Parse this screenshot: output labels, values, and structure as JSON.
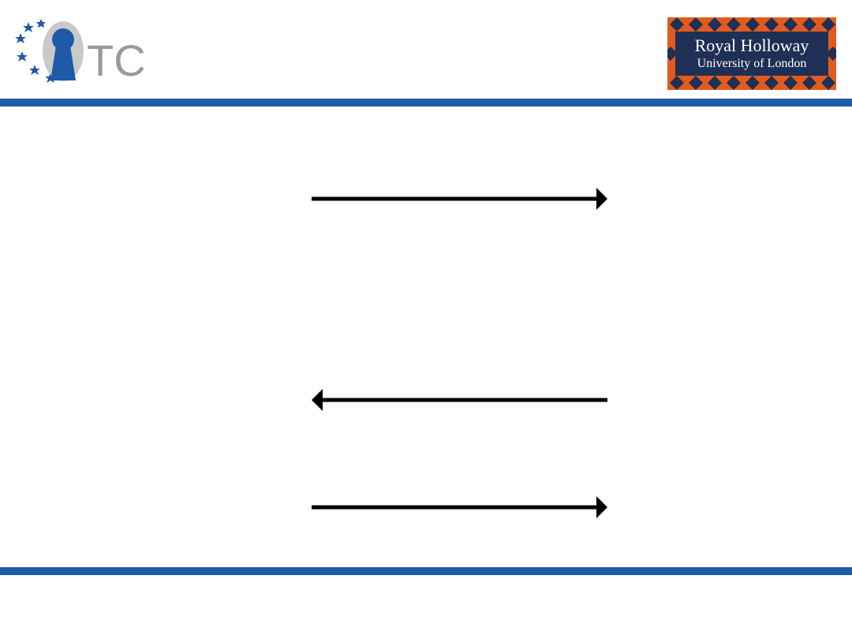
{
  "header": {
    "left_logo": {
      "icon": "otc-keyhole-logo",
      "text": "TC",
      "colors": {
        "keyhole": "#1f5aa8",
        "stars": "#1f5aa8",
        "text": "#9a9a9a"
      }
    },
    "right_logo": {
      "line1": "Royal Holloway",
      "line2": "University of London",
      "colors": {
        "background": "#e35b1c",
        "panel": "#1f2f55",
        "diamond": "#1f2f55",
        "text": "#ffffff"
      }
    }
  },
  "colors": {
    "rule": "#1f5aa8",
    "arrow": "#000000"
  },
  "diagram": {
    "arrows": [
      {
        "direction": "right"
      },
      {
        "direction": "left"
      },
      {
        "direction": "right"
      }
    ]
  }
}
